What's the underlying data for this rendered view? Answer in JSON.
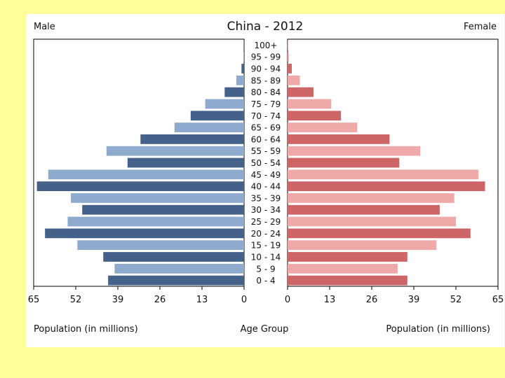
{
  "chart_data": {
    "type": "bar",
    "title": "China - 2012",
    "left_label": "Male",
    "right_label": "Female",
    "center_xlabel": "Age Group",
    "xlabel_left": "Population (in millions)",
    "xlabel_right": "Population (in millions)",
    "xlim": [
      0,
      65
    ],
    "xticks": [
      0,
      13,
      26,
      39,
      52,
      65
    ],
    "categories": [
      "0 - 4",
      "5 - 9",
      "10 - 14",
      "15 - 19",
      "20 - 24",
      "25 - 29",
      "30 - 34",
      "35 - 39",
      "40 - 44",
      "45 - 49",
      "50 - 54",
      "55 - 59",
      "60 - 64",
      "65 - 69",
      "70 - 74",
      "75 - 79",
      "80 - 84",
      "85 - 89",
      "90 - 94",
      "95 - 99",
      "100+"
    ],
    "series": [
      {
        "name": "Male",
        "values": [
          42,
          40,
          43.5,
          51.5,
          61.5,
          54.5,
          50,
          53.5,
          64,
          60.5,
          36,
          42.5,
          32,
          21.5,
          16.5,
          12,
          6,
          2.4,
          0.8,
          0.2,
          0.05
        ],
        "colors": [
          "#44618a",
          "#8eaacf"
        ]
      },
      {
        "name": "Female",
        "values": [
          37,
          34,
          37,
          46,
          56.5,
          52,
          47,
          51.5,
          61,
          59,
          34.5,
          41,
          31.5,
          21.5,
          16.5,
          13.5,
          8,
          3.8,
          1.3,
          0.4,
          0.1
        ],
        "colors": [
          "#cd6566",
          "#f0a9a9"
        ]
      }
    ],
    "grid": false,
    "legend": "none"
  }
}
